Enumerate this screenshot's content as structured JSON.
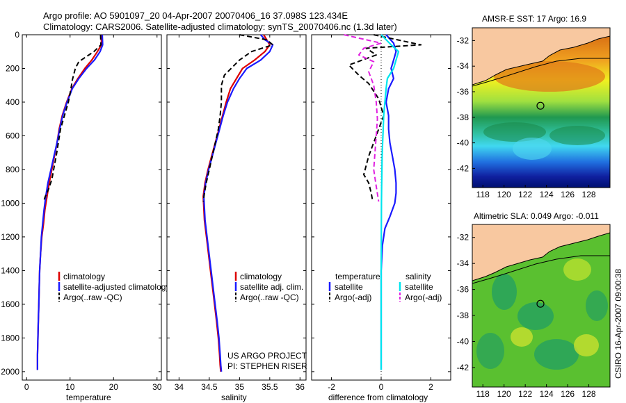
{
  "header": {
    "line1": "Argo profile: AO 5901097_20 04-Apr-2007 20070406_16 37.098S 123.434E",
    "line2": "Climatology: CARS2006. Satellite-adjusted climatology: synTS_20070406.nc (1.3d later)"
  },
  "colors": {
    "climatology": "#dd0000",
    "satellite": "#1a1aff",
    "argo": "#000000",
    "sat_salinity": "#00e5ee",
    "argo_salinity": "#e020e0",
    "land": "#f8c8a0"
  },
  "chart_data": [
    {
      "type": "line",
      "id": "temp",
      "xlabel": "temperature",
      "xlim": [
        -1,
        31
      ],
      "ylim": [
        2050,
        0
      ],
      "xticks": [
        "0",
        "10",
        "20",
        "30"
      ],
      "yticks": [
        "0",
        "200",
        "400",
        "600",
        "800",
        "1000",
        "1200",
        "1400",
        "1600",
        "1800",
        "2000"
      ],
      "legend": [
        "climatology",
        "satellite-adjusted climatology",
        "Argo(..raw -QC)"
      ],
      "series": [
        {
          "name": "climatology",
          "style": "solid",
          "color": "#dd0000",
          "x": [
            17.2,
            17.2,
            16.3,
            15.0,
            13.4,
            11.8,
            10.4,
            9.2,
            8.2,
            7.5,
            7.0,
            6.4,
            5.8,
            5.2,
            4.7,
            4.2,
            3.9,
            3.5,
            3.2,
            3.0,
            2.9,
            2.8,
            2.7,
            2.6,
            2.5,
            2.5
          ],
          "y": [
            0,
            60,
            100,
            150,
            200,
            260,
            320,
            400,
            480,
            560,
            640,
            720,
            800,
            880,
            960,
            1040,
            1120,
            1200,
            1300,
            1400,
            1500,
            1600,
            1700,
            1800,
            1900,
            1990
          ]
        },
        {
          "name": "satellite-adjusted climatology",
          "style": "solid",
          "color": "#1a1aff",
          "x": [
            17.4,
            17.5,
            16.9,
            15.6,
            13.8,
            12.0,
            10.5,
            9.3,
            8.3,
            7.6,
            7.0,
            6.3,
            5.6,
            4.9,
            4.4,
            4.0,
            3.7,
            3.4,
            3.2,
            3.0,
            2.9,
            2.8,
            2.7,
            2.6,
            2.5,
            2.5
          ],
          "y": [
            0,
            60,
            100,
            150,
            200,
            260,
            320,
            400,
            480,
            560,
            640,
            720,
            800,
            880,
            960,
            1040,
            1120,
            1200,
            1300,
            1400,
            1500,
            1600,
            1700,
            1800,
            1900,
            1990
          ]
        },
        {
          "name": "Argo(..raw -QC)",
          "style": "dashed",
          "color": "#000000",
          "x": [
            17.0,
            17.1,
            15.5,
            12.0,
            11.2,
            10.5,
            10.2,
            9.6,
            8.7,
            7.8,
            7.3,
            6.8,
            6.3,
            5.8,
            5.0,
            4.3,
            3.9
          ],
          "y": [
            0,
            60,
            100,
            160,
            200,
            270,
            320,
            400,
            480,
            560,
            640,
            720,
            790,
            860,
            920,
            960,
            990
          ]
        }
      ]
    },
    {
      "type": "line",
      "id": "sal",
      "xlabel": "salinity",
      "xlim": [
        33.8,
        36.1
      ],
      "ylim": [
        2050,
        0
      ],
      "xticks": [
        "34",
        "34.5",
        "35",
        "35.5",
        "36"
      ],
      "legend": [
        "climatology",
        "satellite adj. clim.",
        "Argo(..raw -QC)"
      ],
      "annotations": [
        "US ARGO PROJECT",
        "PI: STEPHEN RISER"
      ],
      "series": [
        {
          "name": "climatology",
          "style": "solid",
          "color": "#dd0000",
          "x": [
            35.4,
            35.45,
            35.5,
            35.42,
            35.25,
            35.05,
            34.95,
            34.85,
            34.78,
            34.72,
            34.66,
            34.6,
            34.54,
            34.48,
            34.43,
            34.4,
            34.42,
            34.47,
            34.52,
            34.57,
            34.62,
            34.65,
            34.67,
            34.68,
            34.69
          ],
          "y": [
            0,
            30,
            60,
            100,
            150,
            200,
            260,
            320,
            400,
            480,
            560,
            640,
            720,
            800,
            880,
            960,
            1100,
            1250,
            1400,
            1550,
            1700,
            1800,
            1900,
            1960,
            2000
          ]
        },
        {
          "name": "satellite adj. clim.",
          "style": "solid",
          "color": "#1a1aff",
          "x": [
            35.35,
            35.42,
            35.55,
            35.5,
            35.35,
            35.12,
            35.0,
            34.9,
            34.8,
            34.73,
            34.67,
            34.61,
            34.55,
            34.49,
            34.44,
            34.41,
            34.43,
            34.48,
            34.53,
            34.58,
            34.63,
            34.66,
            34.68,
            34.69,
            34.7
          ],
          "y": [
            0,
            30,
            60,
            100,
            150,
            200,
            260,
            320,
            400,
            480,
            560,
            640,
            720,
            800,
            880,
            960,
            1100,
            1250,
            1400,
            1550,
            1700,
            1800,
            1900,
            1960,
            2000
          ]
        },
        {
          "name": "Argo(..raw -QC)",
          "style": "dashed",
          "color": "#000000",
          "x": [
            35.0,
            35.45,
            35.55,
            35.2,
            35.0,
            34.75,
            34.7,
            34.7,
            34.68,
            34.65,
            34.6,
            34.55,
            34.5,
            34.45,
            34.42,
            34.4
          ],
          "y": [
            0,
            30,
            60,
            100,
            150,
            240,
            300,
            400,
            480,
            560,
            640,
            720,
            800,
            880,
            940,
            990
          ]
        }
      ]
    },
    {
      "type": "line",
      "id": "diff",
      "xlabel": "difference from climatology",
      "xlim": [
        -2.8,
        2.8
      ],
      "ylim": [
        2050,
        0
      ],
      "xticks": [
        "-2",
        "0",
        "2"
      ],
      "legend_columns": [
        {
          "title": "temperature",
          "items": [
            "satellite",
            "Argo(-adj)"
          ]
        },
        {
          "title": "salinity",
          "items": [
            "satellite",
            "Argo(-adj)"
          ]
        }
      ],
      "series": [
        {
          "name": "temperature satellite",
          "style": "solid",
          "color": "#1a1aff",
          "x": [
            0.2,
            0.5,
            0.6,
            0.5,
            0.4,
            0.5,
            0.3,
            0.2,
            0.3,
            0.3,
            0.35,
            0.45,
            0.55,
            0.6,
            0.6,
            0.55,
            0.35,
            0.15,
            0.05,
            0.0,
            0.0,
            0.0
          ],
          "y": [
            0,
            50,
            100,
            150,
            200,
            260,
            320,
            400,
            480,
            560,
            640,
            720,
            800,
            880,
            940,
            1000,
            1080,
            1150,
            1250,
            1400,
            1700,
            1990
          ]
        },
        {
          "name": "temperature Argo(-adj)",
          "style": "dashed",
          "color": "#000000",
          "x": [
            -0.3,
            1.6,
            -0.6,
            -0.2,
            -1.3,
            -0.9,
            -0.5,
            -0.1,
            0.1,
            -0.1,
            -0.3,
            -0.5,
            -0.7,
            -0.5,
            -0.4,
            -0.35
          ],
          "y": [
            0,
            60,
            80,
            120,
            180,
            240,
            290,
            380,
            480,
            560,
            640,
            720,
            830,
            880,
            940,
            980
          ]
        },
        {
          "name": "salinity satellite",
          "style": "solid",
          "color": "#00e5ee",
          "x": [
            0.0,
            0.4,
            0.7,
            0.6,
            0.5,
            0.25,
            0.2,
            0.15,
            0.1,
            0.08,
            0.06,
            0.04,
            0.03,
            0.02,
            0.01,
            0.0,
            0.0
          ],
          "y": [
            0,
            60,
            100,
            150,
            200,
            260,
            320,
            400,
            480,
            560,
            640,
            720,
            800,
            900,
            1000,
            1400,
            1990
          ]
        },
        {
          "name": "salinity Argo(-adj)",
          "style": "dashed",
          "color": "#e020e0",
          "x": [
            -1.5,
            0.0,
            -0.7,
            -0.9,
            -0.3,
            -0.5,
            -0.3,
            -0.2,
            -0.15,
            -0.2,
            -0.25,
            -0.3,
            -0.2,
            -0.1
          ],
          "y": [
            0,
            50,
            80,
            120,
            160,
            220,
            300,
            400,
            500,
            600,
            700,
            800,
            900,
            990
          ]
        }
      ]
    },
    {
      "type": "heatmap",
      "id": "sst_map",
      "title": "AMSR-E SST: 17 Argo: 16.9",
      "xlim": [
        117,
        130
      ],
      "ylim": [
        -43.5,
        -31
      ],
      "xticks": [
        "118",
        "120",
        "122",
        "124",
        "126",
        "128"
      ],
      "yticks": [
        "-32",
        "-34",
        "-36",
        "-38",
        "-40",
        "-42"
      ],
      "argo_position": {
        "lon": 123.434,
        "lat": -37.098
      }
    },
    {
      "type": "heatmap",
      "id": "sla_map",
      "title": "Altimetric SLA: 0.049 Argo: -0.011",
      "xlim": [
        117,
        130
      ],
      "ylim": [
        -43.5,
        -31
      ],
      "xticks": [
        "118",
        "120",
        "122",
        "124",
        "126",
        "128"
      ],
      "yticks": [
        "-32",
        "-34",
        "-36",
        "-38",
        "-40",
        "-42"
      ],
      "argo_position": {
        "lon": 123.434,
        "lat": -37.098
      }
    }
  ],
  "side_label": "CSIRO 16-Apr-2007 09:00:38"
}
